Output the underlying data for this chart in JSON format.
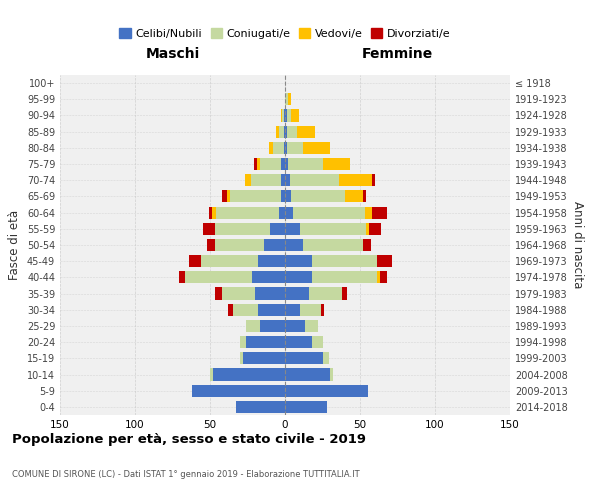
{
  "age_groups": [
    "0-4",
    "5-9",
    "10-14",
    "15-19",
    "20-24",
    "25-29",
    "30-34",
    "35-39",
    "40-44",
    "45-49",
    "50-54",
    "55-59",
    "60-64",
    "65-69",
    "70-74",
    "75-79",
    "80-84",
    "85-89",
    "90-94",
    "95-99",
    "100+"
  ],
  "birth_years": [
    "2014-2018",
    "2009-2013",
    "2004-2008",
    "1999-2003",
    "1994-1998",
    "1989-1993",
    "1984-1988",
    "1979-1983",
    "1974-1978",
    "1969-1973",
    "1964-1968",
    "1959-1963",
    "1954-1958",
    "1949-1953",
    "1944-1948",
    "1939-1943",
    "1934-1938",
    "1929-1933",
    "1924-1928",
    "1919-1923",
    "≤ 1918"
  ],
  "maschi_celibi": [
    33,
    62,
    48,
    28,
    26,
    17,
    18,
    20,
    22,
    18,
    14,
    10,
    4,
    3,
    3,
    3,
    1,
    1,
    1,
    0,
    0
  ],
  "maschi_coniugati": [
    0,
    0,
    2,
    2,
    4,
    9,
    17,
    22,
    45,
    38,
    33,
    37,
    42,
    34,
    20,
    14,
    7,
    3,
    1,
    0,
    0
  ],
  "maschi_vedovi": [
    0,
    0,
    0,
    0,
    0,
    0,
    0,
    0,
    0,
    0,
    0,
    0,
    3,
    2,
    4,
    2,
    3,
    2,
    1,
    0,
    0
  ],
  "maschi_divorziati": [
    0,
    0,
    0,
    0,
    0,
    0,
    3,
    5,
    4,
    8,
    5,
    8,
    2,
    3,
    0,
    2,
    0,
    0,
    0,
    0,
    0
  ],
  "femmine_celibi": [
    28,
    55,
    30,
    25,
    18,
    13,
    10,
    16,
    18,
    18,
    12,
    10,
    5,
    4,
    3,
    2,
    1,
    1,
    1,
    0,
    0
  ],
  "femmine_coniugati": [
    0,
    0,
    2,
    4,
    7,
    9,
    14,
    22,
    43,
    43,
    40,
    44,
    48,
    36,
    33,
    23,
    11,
    7,
    3,
    2,
    0
  ],
  "femmine_vedovi": [
    0,
    0,
    0,
    0,
    0,
    0,
    0,
    0,
    2,
    0,
    0,
    2,
    5,
    12,
    22,
    18,
    18,
    12,
    5,
    2,
    0
  ],
  "femmine_divorziati": [
    0,
    0,
    0,
    0,
    0,
    0,
    2,
    3,
    5,
    10,
    5,
    8,
    10,
    2,
    2,
    0,
    0,
    0,
    0,
    0,
    0
  ],
  "colors": {
    "celibi": "#4472c4",
    "coniugati": "#c5d9a0",
    "vedovi": "#ffc000",
    "divorziati": "#c00000"
  },
  "title": "Popolazione per età, sesso e stato civile - 2019",
  "subtitle": "COMUNE DI SIRONE (LC) - Dati ISTAT 1° gennaio 2019 - Elaborazione TUTTITALIA.IT",
  "header_left": "Maschi",
  "header_right": "Femmine",
  "ylabel_left": "Fasce di età",
  "ylabel_right": "Anni di nascita",
  "xlim": 150,
  "legend_labels": [
    "Celibi/Nubili",
    "Coniugati/e",
    "Vedovi/e",
    "Divorziati/e"
  ],
  "background_color": "#ffffff",
  "plot_bg_color": "#f0f0f0",
  "grid_color": "#cccccc"
}
